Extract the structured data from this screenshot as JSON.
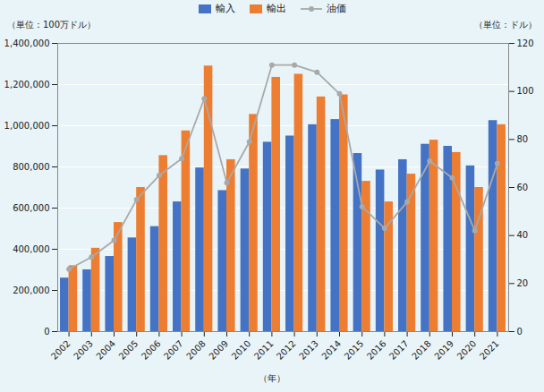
{
  "chart_data": {
    "type": "bar",
    "categories": [
      "2002",
      "2003",
      "2004",
      "2005",
      "2006",
      "2007",
      "2008",
      "2009",
      "2010",
      "2011",
      "2012",
      "2013",
      "2014",
      "2015",
      "2016",
      "2017",
      "2018",
      "2019",
      "2020",
      "2021"
    ],
    "series": [
      {
        "name": "輸入",
        "type": "bar",
        "color": "#4472C4",
        "values": [
          260000,
          300000,
          365000,
          455000,
          510000,
          630000,
          795000,
          685000,
          790000,
          920000,
          950000,
          1005000,
          1030000,
          865000,
          785000,
          835000,
          910000,
          900000,
          805000,
          1025000
        ]
      },
      {
        "name": "輸出",
        "type": "bar",
        "color": "#ED7D31",
        "values": [
          320000,
          405000,
          530000,
          700000,
          855000,
          975000,
          1290000,
          835000,
          1055000,
          1235000,
          1250000,
          1140000,
          1150000,
          730000,
          630000,
          765000,
          930000,
          870000,
          700000,
          1005000
        ]
      },
      {
        "name": "油価",
        "type": "line",
        "axis": "y2",
        "color": "#A9A9A9",
        "marker": "o",
        "values": [
          26,
          31,
          38,
          55,
          65,
          72,
          97,
          62,
          79,
          111,
          111,
          108,
          99,
          52,
          43,
          54,
          71,
          64,
          42,
          70
        ]
      }
    ],
    "xlabel": "（年）",
    "ylabel": "（単位：100万ドル）",
    "y2label": "（単位：ドル）",
    "ylim": [
      0,
      1400000
    ],
    "yticks": [
      0,
      {
        "value": 200000,
        "label": "200,000"
      },
      {
        "value": 400000,
        "label": "400,000"
      },
      {
        "value": 600000,
        "label": "600,000"
      },
      {
        "value": 800000,
        "label": "800,000"
      },
      {
        "value": 1000000,
        "label": "1,000,000"
      },
      {
        "value": 1200000,
        "label": "1,200,000"
      },
      {
        "value": 1400000,
        "label": "1,400,000"
      }
    ],
    "y2lim": [
      0,
      120
    ],
    "y2ticks": [
      0,
      20,
      40,
      60,
      80,
      100,
      120
    ],
    "grid": true,
    "legend": "top"
  }
}
